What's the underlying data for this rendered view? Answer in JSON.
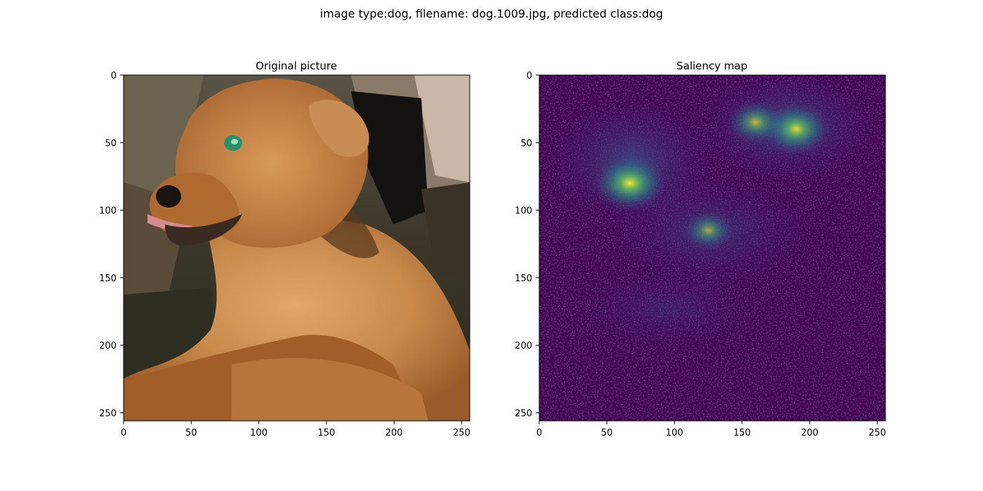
{
  "suptitle": "image type:dog, filename: dog.1009.jpg, predicted class:dog",
  "chart_data": [
    {
      "type": "heatmap",
      "title": "Original picture",
      "content": "photograph of a brown dog",
      "xlim": [
        0,
        256
      ],
      "ylim": [
        256,
        0
      ],
      "xticks": [
        "0",
        "50",
        "100",
        "150",
        "200",
        "250"
      ],
      "yticks": [
        "0",
        "50",
        "100",
        "150",
        "200",
        "250"
      ],
      "grid": false
    },
    {
      "type": "heatmap",
      "title": "Saliency map",
      "colormap": "viridis",
      "xlim": [
        0,
        256
      ],
      "ylim": [
        256,
        0
      ],
      "xticks": [
        "0",
        "50",
        "100",
        "150",
        "200",
        "250"
      ],
      "yticks": [
        "0",
        "50",
        "100",
        "150",
        "200",
        "250"
      ],
      "grid": false,
      "hotspots": [
        {
          "x": 67,
          "y": 80,
          "value": 1.0
        },
        {
          "x": 190,
          "y": 40,
          "value": 0.85
        },
        {
          "x": 160,
          "y": 35,
          "value": 0.6
        },
        {
          "x": 125,
          "y": 115,
          "value": 0.45
        }
      ]
    }
  ],
  "colors": {
    "saliency_low": "#440154",
    "saliency_mid": "#21918c",
    "saliency_high": "#fde725"
  }
}
